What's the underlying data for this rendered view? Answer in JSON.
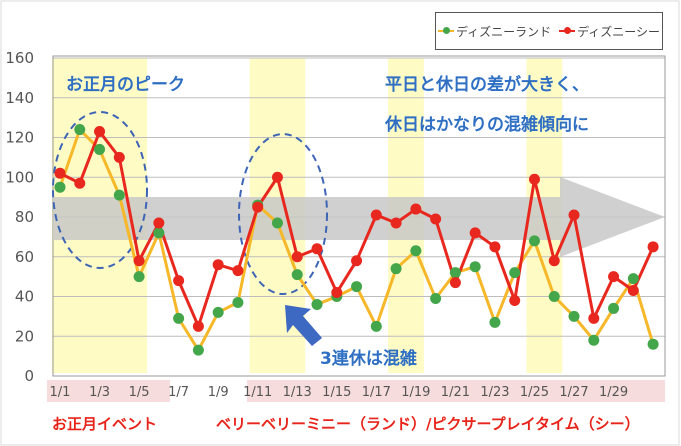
{
  "chart_data": {
    "type": "line",
    "title": "",
    "xlabel": "",
    "ylabel": "",
    "ylim": [
      0,
      160
    ],
    "yticks": [
      0,
      20,
      40,
      60,
      80,
      100,
      120,
      140,
      160
    ],
    "grid": true,
    "legend_position": "top-right",
    "categories": [
      "1/1",
      "1/2",
      "1/3",
      "1/4",
      "1/5",
      "1/6",
      "1/7",
      "1/8",
      "1/9",
      "1/10",
      "1/11",
      "1/12",
      "1/13",
      "1/14",
      "1/15",
      "1/16",
      "1/17",
      "1/18",
      "1/19",
      "1/20",
      "1/21",
      "1/22",
      "1/23",
      "1/24",
      "1/25",
      "1/26",
      "1/27",
      "1/28",
      "1/29",
      "1/30",
      "1/31"
    ],
    "tick_labels": [
      "1/1",
      "1/3",
      "1/5",
      "1/7",
      "1/9",
      "1/11",
      "1/13",
      "1/15",
      "1/17",
      "1/19",
      "1/21",
      "1/23",
      "1/25",
      "1/27",
      "1/29"
    ],
    "series": [
      {
        "name": "ディズニーランド",
        "line_color": "#f6b829",
        "marker_color": "#43a64a",
        "values": [
          95,
          124,
          114,
          91,
          50,
          72,
          29,
          13,
          32,
          37,
          86,
          77,
          51,
          36,
          40,
          45,
          25,
          54,
          63,
          39,
          52,
          55,
          27,
          52,
          68,
          40,
          30,
          18,
          34,
          49,
          16
        ]
      },
      {
        "name": "ディズニーシー",
        "line_color": "#e8281e",
        "marker_color": "#e8281e",
        "values": [
          102,
          97,
          123,
          110,
          58,
          77,
          48,
          25,
          56,
          53,
          85,
          100,
          60,
          64,
          42,
          58,
          81,
          77,
          84,
          79,
          47,
          72,
          65,
          38,
          99,
          58,
          81,
          29,
          50,
          43,
          65
        ]
      }
    ],
    "annotations": {
      "new_year_peak": "お正月のピーク",
      "weekday_note_1": "平日と休日の差が大きく、",
      "weekday_note_2": "休日はかなりの混雑傾向に",
      "three_day_weekend": "3連休は混雑"
    },
    "events": {
      "new_year_event": "お正月イベント",
      "berry_event": "ベリーベリーミニー（ランド）/ピクサープレイタイム（シー）"
    },
    "colors": {
      "annotation": "#2e6fc4",
      "event_text": "#e8231a",
      "highlight_band": "#fffbc4",
      "event_band": "#f6dcdc",
      "trend_arrow": "#c8c8c8"
    }
  }
}
